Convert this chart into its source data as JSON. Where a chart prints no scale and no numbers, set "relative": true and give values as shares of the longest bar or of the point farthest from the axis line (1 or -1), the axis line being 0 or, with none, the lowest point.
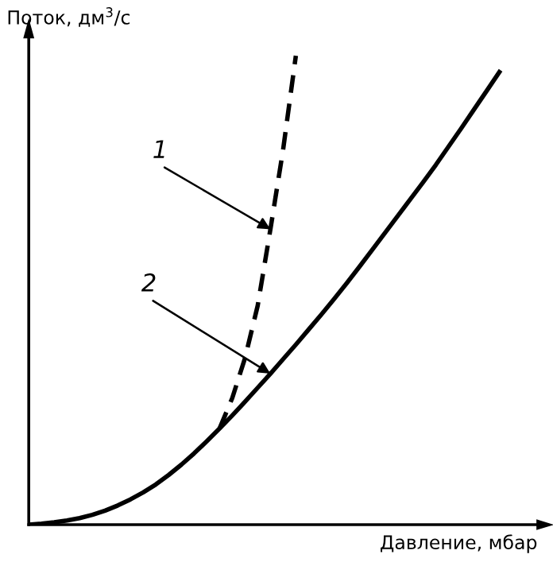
{
  "chart_data": {
    "type": "line",
    "relative": true,
    "xlabel": "Давление, мбар",
    "ylabel": "Поток, дм$^{3}$/с",
    "categories": [
      null,
      null,
      null,
      null,
      null,
      null,
      null,
      null,
      null,
      null,
      null,
      null,
      null,
      null,
      null,
      null,
      null,
      null,
      null,
      null,
      null,
      null,
      null,
      null,
      null,
      null,
      null,
      null,
      null,
      null,
      null,
      null,
      null,
      null,
      null,
      null,
      null,
      null,
      null
    ],
    "series": [
      {
        "color": "#000000",
        "line_style": "dashed",
        "values": [
          null,
          null,
          null,
          null,
          null,
          null,
          null,
          null,
          null,
          null,
          null,
          null,
          null,
          null,
          null,
          0.205,
          0.27,
          0.355,
          0.467,
          0.63,
          0.8,
          1,
          null,
          null,
          null,
          null,
          null,
          null,
          null,
          null,
          null,
          null,
          null,
          null,
          null,
          null,
          null,
          null,
          null
        ]
      },
      {
        "color": "#000000",
        "line_style": "solid",
        "values": [
          0,
          0.002,
          0.005,
          0.009,
          0.014,
          0.021,
          0.03,
          0.041,
          0.054,
          0.069,
          0.086,
          0.106,
          0.128,
          0.152,
          0.178,
          0.205,
          0.233,
          0.262,
          0.292,
          0.322,
          0.353,
          0.384,
          0.416,
          0.448,
          0.481,
          0.515,
          0.55,
          0.586,
          0.622,
          0.658,
          0.694,
          0.73,
          0.767,
          0.806,
          0.845,
          0.885,
          0.925,
          0.965,
          null
        ]
      }
    ],
    "annotations": [
      "1",
      "2"
    ]
  }
}
